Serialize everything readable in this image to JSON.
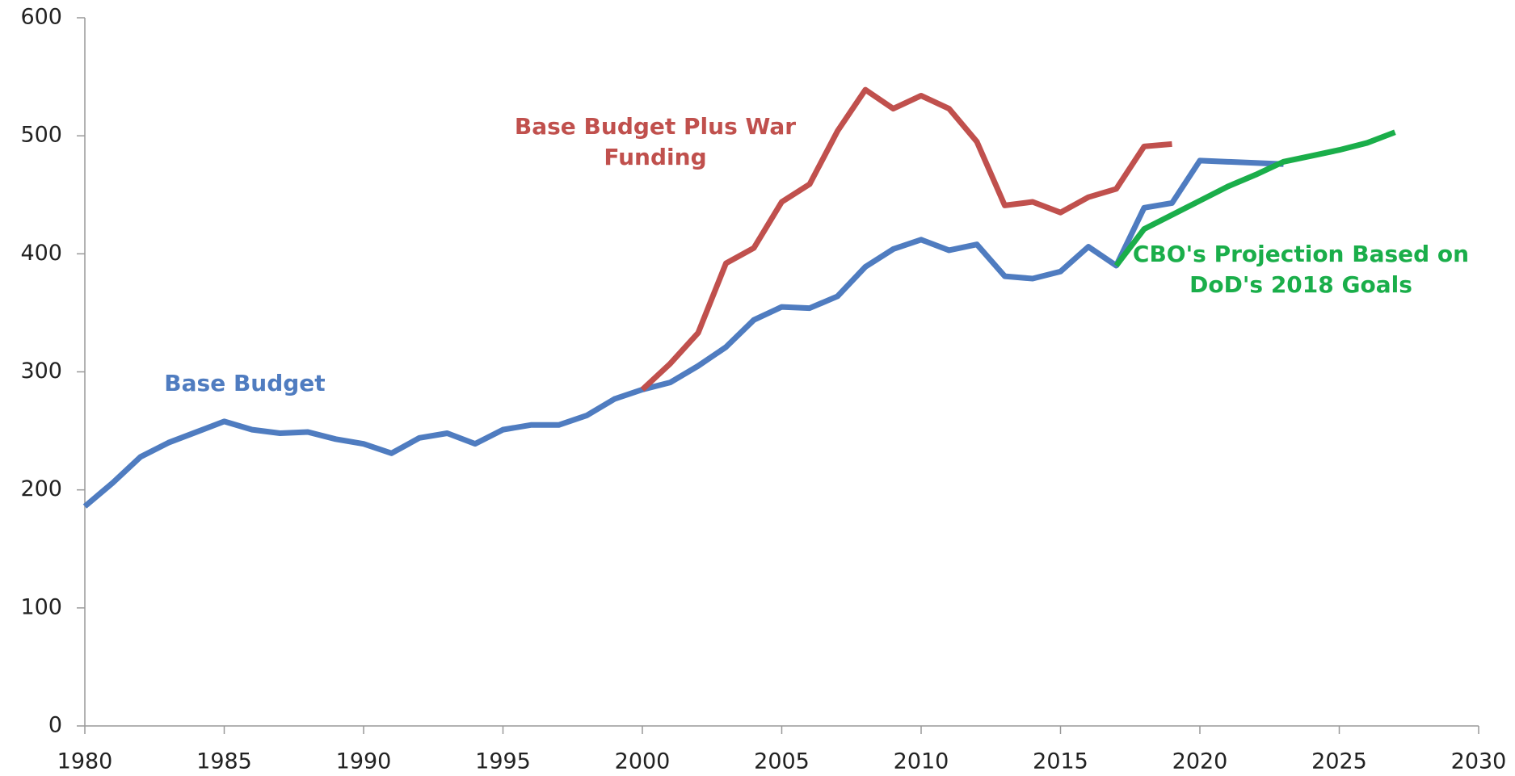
{
  "chart_data": {
    "type": "line",
    "x": [
      1980,
      1981,
      1982,
      1983,
      1984,
      1985,
      1986,
      1987,
      1988,
      1989,
      1990,
      1991,
      1992,
      1993,
      1994,
      1995,
      1996,
      1997,
      1998,
      1999,
      2000,
      2001,
      2002,
      2003,
      2004,
      2005,
      2006,
      2007,
      2008,
      2009,
      2010,
      2011,
      2012,
      2013,
      2014,
      2015,
      2016,
      2017,
      2018,
      2019,
      2020,
      2021,
      2022,
      2023,
      2024,
      2025,
      2026,
      2027
    ],
    "series": [
      {
        "name": "Base Budget",
        "color": "#4f7cc0",
        "values": [
          186,
          206,
          228,
          240,
          249,
          258,
          251,
          248,
          249,
          243,
          239,
          231,
          244,
          248,
          239,
          251,
          255,
          255,
          263,
          277,
          285,
          291,
          305,
          321,
          344,
          355,
          354,
          364,
          389,
          404,
          412,
          403,
          408,
          381,
          379,
          385,
          406,
          390,
          439,
          443,
          479,
          478,
          477,
          476,
          null,
          null,
          null,
          null
        ]
      },
      {
        "name": "Base Budget Plus War Funding",
        "color": "#c0504d",
        "values": [
          null,
          null,
          null,
          null,
          null,
          null,
          null,
          null,
          null,
          null,
          null,
          null,
          null,
          null,
          null,
          null,
          null,
          null,
          null,
          null,
          285,
          307,
          333,
          392,
          405,
          444,
          459,
          504,
          539,
          523,
          534,
          523,
          495,
          441,
          444,
          435,
          448,
          455,
          491,
          493,
          null,
          null,
          null,
          null,
          null,
          null,
          null,
          null
        ]
      },
      {
        "name": "CBO's Projection Based on DoD's 2018 Goals",
        "color": "#1aae4a",
        "values": [
          null,
          null,
          null,
          null,
          null,
          null,
          null,
          null,
          null,
          null,
          null,
          null,
          null,
          null,
          null,
          null,
          null,
          null,
          null,
          null,
          null,
          null,
          null,
          null,
          null,
          null,
          null,
          null,
          null,
          null,
          null,
          null,
          null,
          null,
          null,
          null,
          null,
          390,
          421,
          433,
          445,
          457,
          467,
          478,
          483,
          488,
          494,
          503
        ]
      }
    ],
    "xlim": [
      1980,
      2030
    ],
    "xticks": [
      1980,
      1985,
      1990,
      1995,
      2000,
      2005,
      2010,
      2015,
      2020,
      2025,
      2030
    ],
    "ylim": [
      0,
      600
    ],
    "yticks": [
      0,
      100,
      200,
      300,
      400,
      500,
      600
    ],
    "grid": false
  }
}
